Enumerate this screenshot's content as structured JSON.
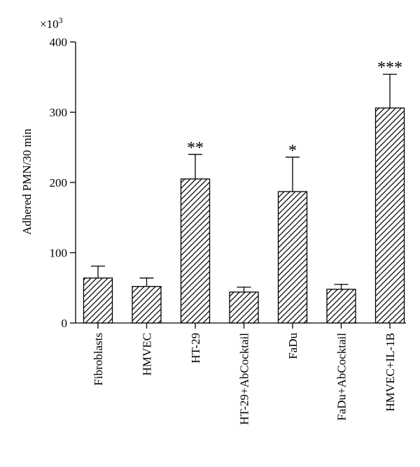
{
  "chart_data": {
    "type": "bar",
    "ylabel": "Adhered PMN/30 min",
    "y_multiplier": "×10",
    "y_multiplier_exponent": "3",
    "ylim": [
      0,
      400
    ],
    "yticks": [
      0,
      100,
      200,
      300,
      400
    ],
    "categories": [
      "Fibroblasts",
      "HMVEC",
      "HT-29",
      "HT-29+AbCocktail",
      "FaDu",
      "FaDu+AbCocktail",
      "HMVEC+IL-1B"
    ],
    "values": [
      64,
      52,
      205,
      44,
      187,
      48,
      306
    ],
    "errors": [
      17,
      12,
      35,
      7,
      49,
      7,
      48
    ],
    "significance": [
      "",
      "",
      "**",
      "",
      "*",
      "",
      "***"
    ],
    "fill_pattern": "diagonal-hatch",
    "colors": {
      "bar_stroke": "#000000",
      "hatch": "#000000",
      "background": "#ffffff"
    }
  }
}
